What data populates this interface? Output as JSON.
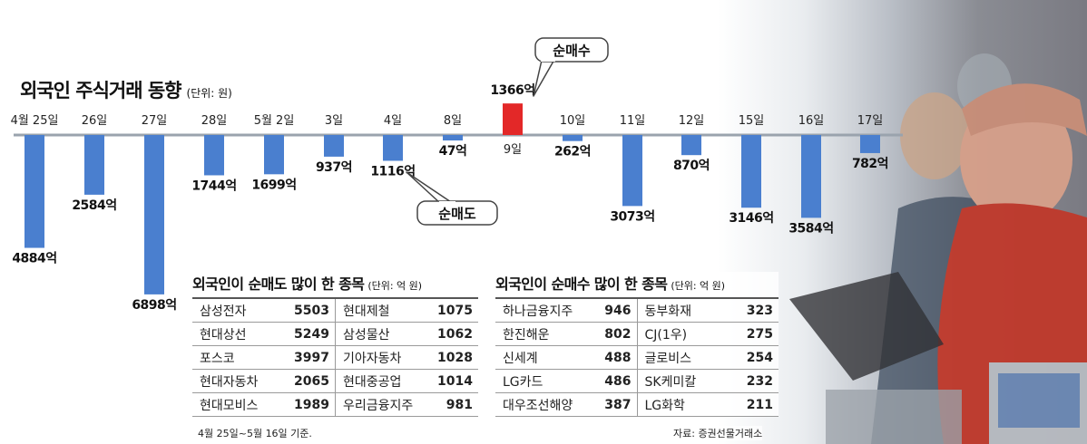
{
  "title": "외국인 주식거래 동향",
  "title_unit": "(단위: 원)",
  "callouts": {
    "buy": "순매수",
    "sell": "순매도"
  },
  "colors": {
    "sell_bar": "#4a7fcf",
    "buy_bar": "#e32828",
    "axis": "#9aa3ad"
  },
  "chart_data": {
    "type": "bar",
    "categories": [
      "4월 25일",
      "26일",
      "27일",
      "28일",
      "5월 2일",
      "3일",
      "4일",
      "8일",
      "9일",
      "10일",
      "11일",
      "12일",
      "15일",
      "16일",
      "17일"
    ],
    "values": [
      -4884,
      -2584,
      -6898,
      -1744,
      -1699,
      -937,
      -1116,
      -47,
      1366,
      -262,
      -3073,
      -870,
      -3146,
      -3584,
      -782
    ],
    "value_labels": [
      "4884억",
      "2584억",
      "6898억",
      "1744억",
      "1699억",
      "937억",
      "1116억",
      "47억",
      "1366억",
      "262억",
      "3073억",
      "870억",
      "3146억",
      "3584억",
      "782억"
    ],
    "title": "외국인 주식거래 동향",
    "unit": "억 원",
    "ylim": [
      -6898,
      1366
    ]
  },
  "sell_table": {
    "title": "외국인이 순매도 많이 한 종목",
    "unit": "(단위: 억 원)",
    "left": [
      {
        "name": "삼성전자",
        "value": "5503"
      },
      {
        "name": "현대상선",
        "value": "5249"
      },
      {
        "name": "포스코",
        "value": "3997"
      },
      {
        "name": "현대자동차",
        "value": "2065"
      },
      {
        "name": "현대모비스",
        "value": "1989"
      }
    ],
    "right": [
      {
        "name": "현대제철",
        "value": "1075"
      },
      {
        "name": "삼성물산",
        "value": "1062"
      },
      {
        "name": "기아자동차",
        "value": "1028"
      },
      {
        "name": "현대중공업",
        "value": "1014"
      },
      {
        "name": "우리금융지주",
        "value": "981"
      }
    ]
  },
  "buy_table": {
    "title": "외국인이 순매수 많이 한 종목",
    "unit": "(단위: 억 원)",
    "left": [
      {
        "name": "하나금융지주",
        "value": "946"
      },
      {
        "name": "한진해운",
        "value": "802"
      },
      {
        "name": "신세계",
        "value": "488"
      },
      {
        "name": "LG카드",
        "value": "486"
      },
      {
        "name": "대우조선해양",
        "value": "387"
      }
    ],
    "right": [
      {
        "name": "동부화재",
        "value": "323"
      },
      {
        "name": "CJ(1우)",
        "value": "275"
      },
      {
        "name": "글로비스",
        "value": "254"
      },
      {
        "name": "SK케미칼",
        "value": "232"
      },
      {
        "name": "LG화학",
        "value": "211"
      }
    ]
  },
  "basis": "4월 25일~5월 16일 기준.",
  "source": "자료: 증권선물거래소"
}
